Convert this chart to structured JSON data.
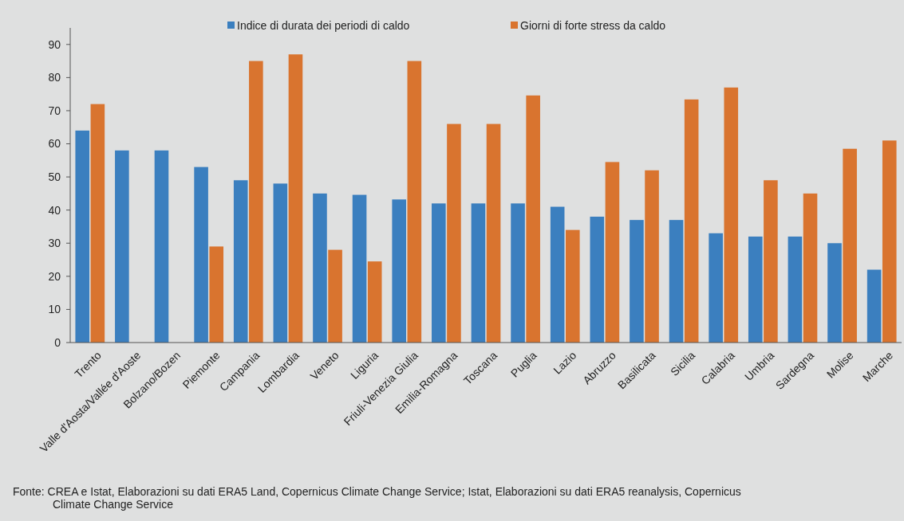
{
  "chart_data": {
    "type": "bar",
    "categories": [
      "Trento",
      "Valle d'Aosta/Vallée d'Aoste",
      "Bolzano/Bozen",
      "Piemonte",
      "Campania",
      "Lombardia",
      "Veneto",
      "Liguria",
      "Friuli-Venezia Giulia",
      "Emilia-Romagna",
      "Toscana",
      "Puglia",
      "Lazio",
      "Abruzzo",
      "Basilicata",
      "Sicilia",
      "Calabria",
      "Umbria",
      "Sardegna",
      "Molise",
      "Marche"
    ],
    "series": [
      {
        "name": "Indice di durata dei periodi di caldo",
        "color": "#3b7fbf",
        "values": [
          64,
          58,
          58,
          53,
          49,
          48,
          45,
          44.6,
          43.2,
          42,
          42,
          42,
          41,
          38,
          37,
          37,
          33,
          32,
          32,
          30,
          22
        ]
      },
      {
        "name": "Giorni di forte stress da caldo",
        "color": "#d9742f",
        "values": [
          72,
          null,
          null,
          29,
          85,
          87,
          28,
          24.5,
          85,
          66,
          66,
          74.6,
          34,
          54.5,
          52,
          73.4,
          77,
          49,
          45,
          58.5,
          61
        ]
      }
    ],
    "ylim": [
      0,
      95
    ],
    "yticks": [
      0,
      10,
      20,
      30,
      40,
      50,
      60,
      70,
      80,
      90
    ],
    "grid": false,
    "legend": "top",
    "annotations": [
      "Fonte: CREA e Istat, Elaborazioni su dati ERA5 Land, Copernicus Climate Change Service; Istat, Elaborazioni su dati ERA5 reanalysis, Copernicus Climate Change Service"
    ]
  }
}
